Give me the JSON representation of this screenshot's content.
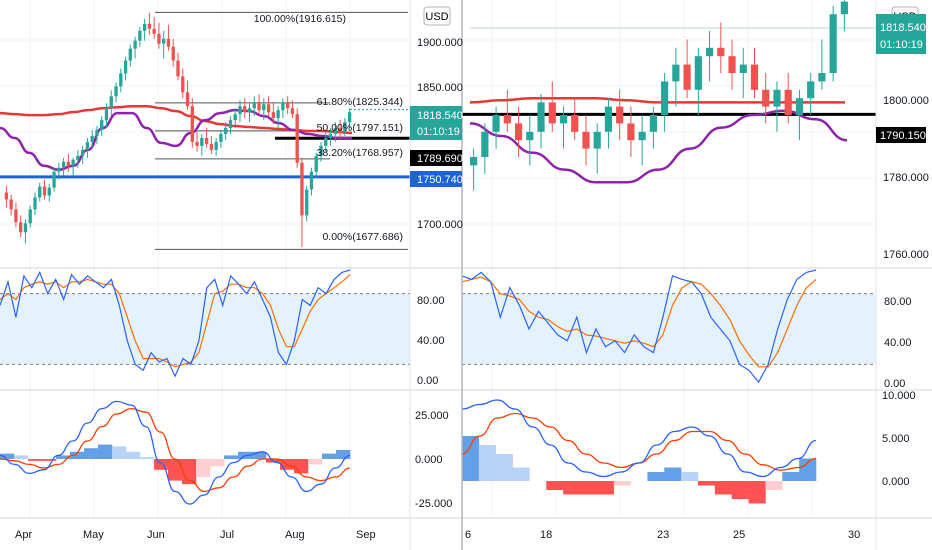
{
  "colors": {
    "candle_up": "#26a69a",
    "candle_down": "#ef5350",
    "ma_red": "#e53935",
    "ma_purple": "#8e24aa",
    "support_blue": "#1e63d6",
    "level_black": "#000000",
    "stoch_k": "#2962ff",
    "stoch_d": "#ff6d00",
    "stoch_band": "#e3f2fd",
    "macd_line": "#2962ff",
    "signal_line": "#ff3d00",
    "hist_pos_strong": "#64a0e8",
    "hist_pos_weak": "#b7d3f5",
    "hist_neg_strong": "#ff5252",
    "hist_neg_weak": "#ffcdd2",
    "badge_green": "#26a69a",
    "badge_blue": "#1e63d6",
    "badge_black": "#000000",
    "grid": "#f0f3fa",
    "divider": "#d1d4dc"
  },
  "left": {
    "currency": "USD",
    "price_ticks": [
      "1900.000",
      "1850.000",
      "1800.000",
      "1750.000",
      "1700.000"
    ],
    "fib_levels": [
      {
        "label": "100.00%(1916.615)",
        "value": 1916.615
      },
      {
        "label": "61.80%(1825.344)",
        "value": 1825.344
      },
      {
        "label": "50.00%(1797.151)",
        "value": 1797.151
      },
      {
        "label": "38.20%(1768.957)",
        "value": 1768.957
      },
      {
        "label": "0.00%(1677.686)",
        "value": 1677.686
      }
    ],
    "badge_price": {
      "price": "1818.540",
      "countdown": "01:10:19"
    },
    "badge_level": "1789.690",
    "badge_support": "1750.740",
    "stoch_ticks": [
      "80.00",
      "40.00",
      "0.00"
    ],
    "macd_ticks": [
      "25.000",
      "0.000",
      "-25.000"
    ],
    "x_ticks": [
      "Apr",
      "May",
      "Jun",
      "Jul",
      "Aug",
      "Sep"
    ]
  },
  "right": {
    "currency": "USD",
    "price_ticks": [
      "1800.000",
      "1780.000",
      "1760.000"
    ],
    "badge_price": {
      "price": "1818.540",
      "countdown": "01:10:19"
    },
    "badge_level": "1790.150",
    "stoch_ticks": [
      "80.00",
      "40.00",
      "0.00"
    ],
    "macd_ticks": [
      "10.000",
      "5.000",
      "0.000"
    ],
    "x_ticks": [
      "6",
      "18",
      "23",
      "25",
      "30"
    ]
  },
  "chart_data": [
    {
      "type": "candlestick",
      "title": "",
      "panel": "left-daily",
      "x_range": [
        "Mar",
        "Sep"
      ],
      "ylim": [
        1665,
        1925
      ],
      "overlays": [
        "moving average (red)",
        "moving average (purple)",
        "horizontal level 1789.690",
        "support level 1750.740"
      ],
      "candles": [
        [
          1735,
          1742,
          1720,
          1728
        ],
        [
          1728,
          1733,
          1712,
          1718
        ],
        [
          1718,
          1725,
          1700,
          1705
        ],
        [
          1705,
          1712,
          1690,
          1695
        ],
        [
          1695,
          1708,
          1684,
          1704
        ],
        [
          1704,
          1722,
          1700,
          1718
        ],
        [
          1718,
          1735,
          1712,
          1730
        ],
        [
          1730,
          1745,
          1726,
          1741
        ],
        [
          1741,
          1748,
          1728,
          1732
        ],
        [
          1732,
          1744,
          1726,
          1740
        ],
        [
          1740,
          1760,
          1736,
          1756
        ],
        [
          1756,
          1765,
          1748,
          1760
        ],
        [
          1760,
          1770,
          1752,
          1766
        ],
        [
          1766,
          1774,
          1756,
          1762
        ],
        [
          1762,
          1770,
          1752,
          1768
        ],
        [
          1768,
          1778,
          1760,
          1772
        ],
        [
          1772,
          1782,
          1764,
          1778
        ],
        [
          1778,
          1790,
          1770,
          1786
        ],
        [
          1786,
          1798,
          1780,
          1792
        ],
        [
          1792,
          1802,
          1784,
          1798
        ],
        [
          1798,
          1812,
          1792,
          1808
        ],
        [
          1808,
          1825,
          1800,
          1820
        ],
        [
          1820,
          1838,
          1812,
          1832
        ],
        [
          1832,
          1846,
          1826,
          1842
        ],
        [
          1842,
          1860,
          1836,
          1855
        ],
        [
          1855,
          1872,
          1848,
          1868
        ],
        [
          1868,
          1884,
          1862,
          1880
        ],
        [
          1880,
          1892,
          1870,
          1888
        ],
        [
          1888,
          1902,
          1882,
          1898
        ],
        [
          1898,
          1910,
          1888,
          1905
        ],
        [
          1905,
          1916,
          1894,
          1900
        ],
        [
          1900,
          1912,
          1890,
          1895
        ],
        [
          1895,
          1906,
          1880,
          1885
        ],
        [
          1885,
          1898,
          1870,
          1890
        ],
        [
          1890,
          1904,
          1878,
          1882
        ],
        [
          1882,
          1890,
          1862,
          1868
        ],
        [
          1868,
          1876,
          1848,
          1852
        ],
        [
          1852,
          1860,
          1830,
          1836
        ],
        [
          1836,
          1848,
          1818,
          1822
        ],
        [
          1822,
          1830,
          1780,
          1786
        ],
        [
          1786,
          1796,
          1776,
          1782
        ],
        [
          1782,
          1794,
          1772,
          1790
        ],
        [
          1790,
          1800,
          1780,
          1784
        ],
        [
          1784,
          1792,
          1774,
          1778
        ],
        [
          1778,
          1790,
          1772,
          1786
        ],
        [
          1786,
          1798,
          1780,
          1794
        ],
        [
          1794,
          1806,
          1788,
          1800
        ],
        [
          1800,
          1812,
          1794,
          1808
        ],
        [
          1808,
          1820,
          1800,
          1814
        ],
        [
          1814,
          1828,
          1806,
          1822
        ],
        [
          1822,
          1830,
          1810,
          1816
        ],
        [
          1816,
          1826,
          1806,
          1820
        ],
        [
          1820,
          1832,
          1812,
          1826
        ],
        [
          1826,
          1834,
          1814,
          1818
        ],
        [
          1818,
          1830,
          1808,
          1824
        ],
        [
          1824,
          1832,
          1812,
          1816
        ],
        [
          1816,
          1826,
          1804,
          1810
        ],
        [
          1810,
          1822,
          1800,
          1818
        ],
        [
          1818,
          1830,
          1810,
          1826
        ],
        [
          1826,
          1832,
          1814,
          1820
        ],
        [
          1820,
          1828,
          1810,
          1814
        ],
        [
          1814,
          1820,
          1760,
          1765
        ],
        [
          1765,
          1770,
          1680,
          1712
        ],
        [
          1712,
          1742,
          1706,
          1738
        ],
        [
          1738,
          1760,
          1732,
          1756
        ],
        [
          1756,
          1775,
          1750,
          1772
        ],
        [
          1772,
          1786,
          1766,
          1782
        ],
        [
          1782,
          1796,
          1776,
          1790
        ],
        [
          1790,
          1800,
          1782,
          1794
        ],
        [
          1794,
          1806,
          1786,
          1800
        ],
        [
          1800,
          1808,
          1790,
          1796
        ],
        [
          1796,
          1810,
          1792,
          1806
        ],
        [
          1806,
          1820,
          1800,
          1816
        ]
      ],
      "ma_red": [
        1815,
        1814,
        1813,
        1813,
        1814,
        1816,
        1818,
        1820,
        1821,
        1822,
        1822,
        1820,
        1817,
        1812,
        1807,
        1804,
        1802,
        1801,
        1800,
        1799,
        1798,
        1797,
        1797,
        1796,
        1795
      ],
      "ma_purple": [
        1800,
        1790,
        1775,
        1762,
        1758,
        1762,
        1778,
        1800,
        1815,
        1815,
        1800,
        1785,
        1782,
        1795,
        1808,
        1815,
        1818,
        1817,
        1812,
        1805,
        1798,
        1794,
        1792,
        1790,
        1790
      ]
    },
    {
      "type": "candlestick",
      "title": "",
      "panel": "right-hourly",
      "x_ticks": [
        "6",
        "18",
        "23",
        "25",
        "30"
      ],
      "ylim": [
        1755,
        1815
      ],
      "overlays": [
        "moving average (red)",
        "moving average (purple)",
        "horizontal level 1790.150"
      ],
      "candles": [
        [
          1778,
          1782,
          1772,
          1780
        ],
        [
          1780,
          1788,
          1776,
          1786
        ],
        [
          1786,
          1792,
          1782,
          1790
        ],
        [
          1790,
          1796,
          1786,
          1788
        ],
        [
          1788,
          1792,
          1780,
          1784
        ],
        [
          1784,
          1790,
          1778,
          1786
        ],
        [
          1786,
          1795,
          1782,
          1793
        ],
        [
          1793,
          1798,
          1786,
          1788
        ],
        [
          1788,
          1792,
          1782,
          1790
        ],
        [
          1790,
          1794,
          1784,
          1786
        ],
        [
          1786,
          1790,
          1778,
          1782
        ],
        [
          1782,
          1788,
          1776,
          1786
        ],
        [
          1786,
          1794,
          1782,
          1792
        ],
        [
          1792,
          1796,
          1784,
          1788
        ],
        [
          1788,
          1792,
          1780,
          1784
        ],
        [
          1784,
          1790,
          1778,
          1786
        ],
        [
          1786,
          1792,
          1782,
          1790
        ],
        [
          1790,
          1800,
          1786,
          1798
        ],
        [
          1798,
          1806,
          1792,
          1802
        ],
        [
          1802,
          1808,
          1794,
          1796
        ],
        [
          1796,
          1806,
          1790,
          1804
        ],
        [
          1804,
          1810,
          1798,
          1806
        ],
        [
          1806,
          1812,
          1800,
          1804
        ],
        [
          1804,
          1808,
          1796,
          1800
        ],
        [
          1800,
          1806,
          1794,
          1802
        ],
        [
          1802,
          1806,
          1794,
          1796
        ],
        [
          1796,
          1800,
          1788,
          1792
        ],
        [
          1792,
          1798,
          1786,
          1796
        ],
        [
          1796,
          1800,
          1788,
          1790
        ],
        [
          1790,
          1796,
          1784,
          1794
        ],
        [
          1794,
          1800,
          1790,
          1798
        ],
        [
          1798,
          1808,
          1796,
          1800
        ],
        [
          1800,
          1816,
          1798,
          1814
        ],
        [
          1814,
          1818,
          1810,
          1817
        ]
      ],
      "ma_red": [
        1793,
        1793.5,
        1794,
        1794,
        1794,
        1793.5,
        1793,
        1793,
        1793,
        1793,
        1793,
        1793,
        1793
      ],
      "ma_purple": [
        1788,
        1785,
        1781,
        1777,
        1774,
        1774,
        1777,
        1782,
        1787,
        1790,
        1791,
        1789,
        1784
      ]
    }
  ]
}
